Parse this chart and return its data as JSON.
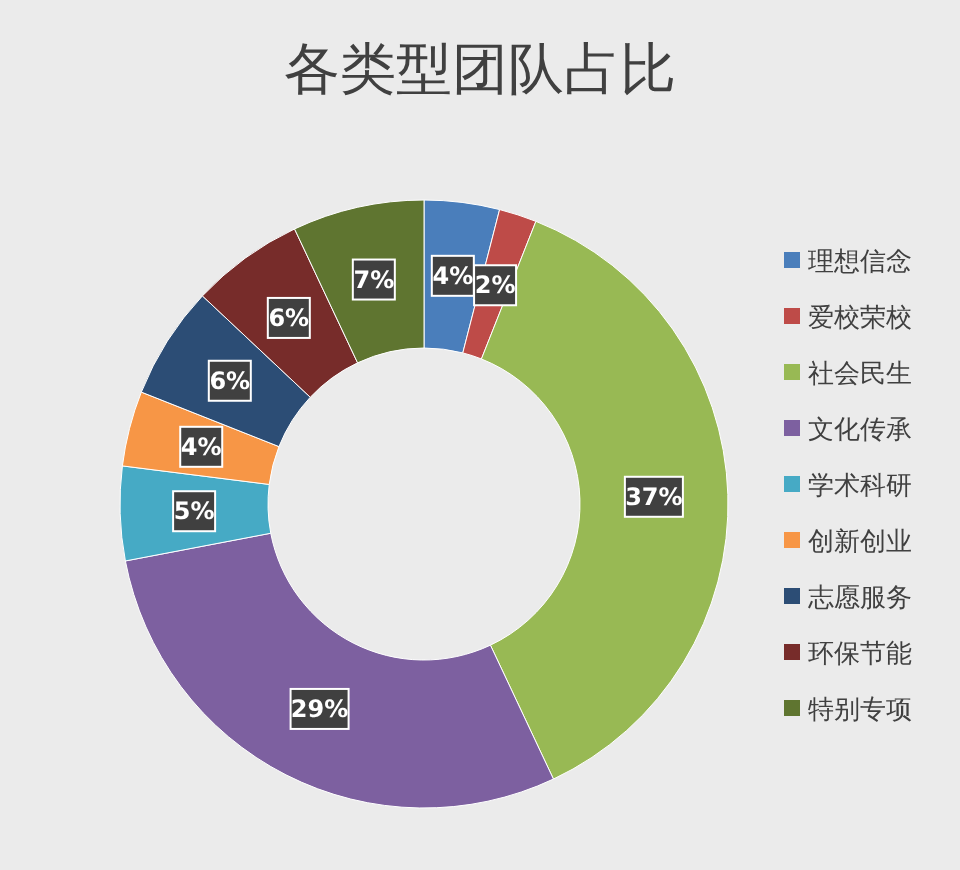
{
  "chart_data": {
    "type": "donut",
    "title": "各类型团队占比",
    "categories": [
      "理想信念",
      "爱校荣校",
      "社会民生",
      "文化传承",
      "学术科研",
      "创新创业",
      "志愿服务",
      "环保节能",
      "特别专项"
    ],
    "values": [
      4,
      2,
      37,
      29,
      5,
      4,
      6,
      6,
      7
    ],
    "colors": [
      "#4a7ebb",
      "#be4b48",
      "#98b954",
      "#7d60a0",
      "#46aac5",
      "#f79646",
      "#2c4d75",
      "#772c2a",
      "#5f7530"
    ],
    "value_labels": [
      "4%",
      "2%",
      "37%",
      "29%",
      "5%",
      "4%",
      "6%",
      "6%",
      "7%"
    ],
    "legend": "right"
  }
}
